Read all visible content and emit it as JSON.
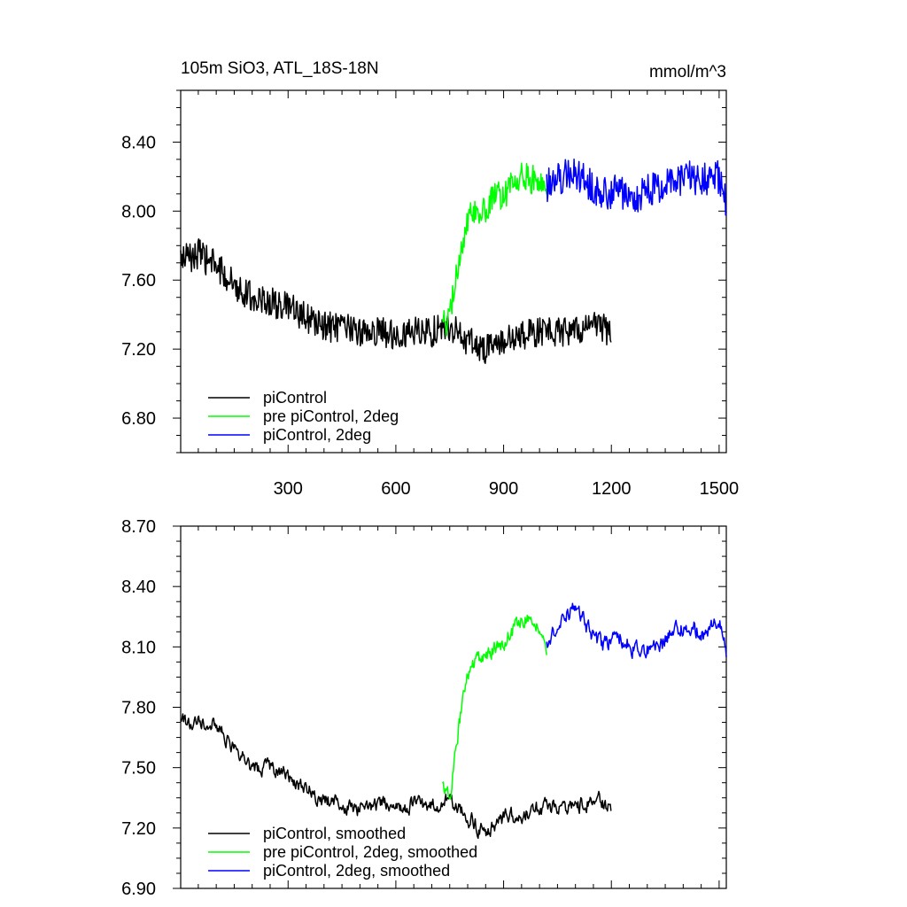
{
  "figure": {
    "title_left": "105m SiO3, ATL_18S-18N",
    "title_right": "mmol/m^3"
  },
  "colors": {
    "piControl": "#000000",
    "pre_piControl_2deg": "#00ff00",
    "piControl_2deg": "#0000ff"
  },
  "chart_data": [
    {
      "type": "line",
      "panel": "top",
      "title": "105m SiO3, ATL_18S-18N",
      "units": "mmol/m^3",
      "xlim": [
        1,
        1520
      ],
      "ylim": [
        6.6,
        8.7
      ],
      "xticks": [
        300,
        600,
        900,
        1200,
        1500
      ],
      "xtick_labels": [
        "300",
        "600",
        "900",
        "1200",
        "1500"
      ],
      "yticks": [
        6.8,
        7.2,
        7.6,
        8.0,
        8.4
      ],
      "ytick_labels": [
        "6.80",
        "7.20",
        "7.60",
        "8.00",
        "8.40"
      ],
      "legend_position": "lower-left",
      "series": [
        {
          "name": "piControl",
          "legend": "piControl",
          "color": "#000000",
          "x_start": 1,
          "x_end": 1200,
          "x": [
            1,
            50,
            100,
            150,
            200,
            250,
            300,
            350,
            400,
            450,
            500,
            550,
            600,
            650,
            700,
            750,
            800,
            850,
            900,
            950,
            1000,
            1050,
            1100,
            1150,
            1200
          ],
          "values": [
            7.72,
            7.75,
            7.68,
            7.58,
            7.5,
            7.47,
            7.44,
            7.38,
            7.33,
            7.32,
            7.3,
            7.3,
            7.29,
            7.3,
            7.3,
            7.33,
            7.25,
            7.2,
            7.25,
            7.27,
            7.3,
            7.3,
            7.3,
            7.35,
            7.3
          ],
          "noise": 0.09
        },
        {
          "name": "pre piControl, 2deg",
          "legend": "pre piControl, 2deg",
          "color": "#00ff00",
          "x_start": 730,
          "x_end": 1020,
          "x": [
            730,
            750,
            775,
            800,
            825,
            850,
            875,
            900,
            925,
            950,
            975,
            1000,
            1020
          ],
          "values": [
            7.32,
            7.4,
            7.7,
            7.95,
            7.98,
            8.02,
            8.08,
            8.1,
            8.15,
            8.22,
            8.18,
            8.2,
            8.15
          ],
          "noise": 0.09
        },
        {
          "name": "piControl, 2deg",
          "legend": "piControl, 2deg",
          "color": "#0000ff",
          "x_start": 1020,
          "x_end": 1520,
          "x": [
            1020,
            1060,
            1100,
            1140,
            1180,
            1220,
            1260,
            1300,
            1340,
            1380,
            1420,
            1460,
            1500,
            1520
          ],
          "values": [
            8.15,
            8.2,
            8.22,
            8.15,
            8.1,
            8.12,
            8.08,
            8.12,
            8.15,
            8.18,
            8.2,
            8.18,
            8.2,
            8.05
          ],
          "noise": 0.1
        }
      ]
    },
    {
      "type": "line",
      "panel": "bottom",
      "xlim": [
        1,
        1520
      ],
      "ylim": [
        6.9,
        8.7
      ],
      "xticks": [
        300,
        600,
        900,
        1200,
        1500
      ],
      "yticks": [
        6.9,
        7.2,
        7.5,
        7.8,
        8.1,
        8.4,
        8.7
      ],
      "ytick_labels": [
        "6.90",
        "7.20",
        "7.50",
        "7.80",
        "8.10",
        "8.40",
        "8.70"
      ],
      "legend_position": "lower-left",
      "series": [
        {
          "name": "piControl, smoothed",
          "legend": "piControl, smoothed",
          "color": "#000000",
          "x_start": 1,
          "x_end": 1200,
          "x": [
            1,
            50,
            100,
            150,
            200,
            250,
            300,
            350,
            400,
            450,
            500,
            550,
            600,
            650,
            700,
            750,
            800,
            850,
            900,
            950,
            1000,
            1050,
            1100,
            1150,
            1200
          ],
          "values": [
            7.72,
            7.75,
            7.7,
            7.6,
            7.5,
            7.5,
            7.46,
            7.4,
            7.33,
            7.32,
            7.3,
            7.32,
            7.3,
            7.32,
            7.3,
            7.35,
            7.25,
            7.18,
            7.25,
            7.27,
            7.3,
            7.3,
            7.3,
            7.35,
            7.3
          ],
          "noise": 0.045
        },
        {
          "name": "pre piControl, 2deg, smoothed",
          "legend": "pre piControl, 2deg, smoothed",
          "color": "#00ff00",
          "x_start": 730,
          "x_end": 1020,
          "x": [
            730,
            750,
            775,
            800,
            825,
            850,
            875,
            900,
            925,
            950,
            975,
            1000,
            1020
          ],
          "values": [
            7.4,
            7.35,
            7.7,
            7.95,
            8.05,
            8.05,
            8.1,
            8.12,
            8.18,
            8.25,
            8.22,
            8.2,
            8.05
          ],
          "noise": 0.045
        },
        {
          "name": "piControl, 2deg, smoothed",
          "legend": "piControl, 2deg, smoothed",
          "color": "#0000ff",
          "x_start": 1020,
          "x_end": 1520,
          "x": [
            1020,
            1060,
            1100,
            1140,
            1180,
            1220,
            1260,
            1300,
            1340,
            1380,
            1420,
            1460,
            1500,
            1520
          ],
          "values": [
            8.1,
            8.22,
            8.3,
            8.18,
            8.1,
            8.15,
            8.1,
            8.08,
            8.12,
            8.18,
            8.2,
            8.17,
            8.25,
            8.08
          ],
          "noise": 0.05
        }
      ]
    }
  ]
}
